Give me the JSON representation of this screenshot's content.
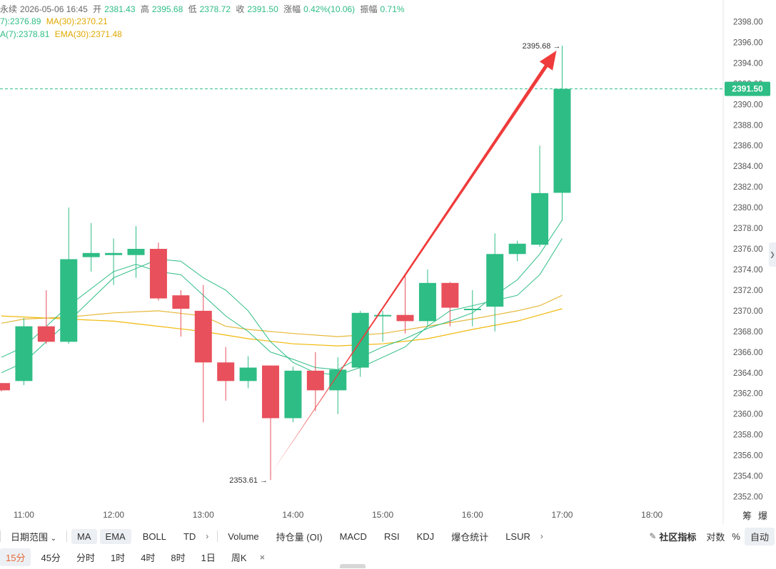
{
  "header": {
    "title_fragment": "永续",
    "datetime": "2026-05-06 16:45",
    "open_label": "开",
    "open": "2381.43",
    "high_label": "高",
    "high": "2395.68",
    "low_label": "低",
    "low": "2378.72",
    "close_label": "收",
    "close": "2391.50",
    "change_label": "涨幅",
    "change": "0.42%(10.06)",
    "amp_label": "振幅",
    "amp": "0.71%",
    "ma7": "7):2376.89",
    "ma30": "MA(30):2370.21",
    "ema7": "A(7):2378.81",
    "ema30": "EMA(30):2371.48"
  },
  "chart_data": {
    "type": "candlestick",
    "interval": "15分",
    "y_ticks": [
      2352,
      2354,
      2356,
      2358,
      2360,
      2362,
      2364,
      2366,
      2368,
      2370,
      2372,
      2374,
      2376,
      2378,
      2380,
      2382,
      2384,
      2386,
      2388,
      2390,
      2392,
      2394,
      2396,
      2398
    ],
    "y_range": [
      2351,
      2399
    ],
    "x_ticks": [
      "11:00",
      "12:00",
      "13:00",
      "14:00",
      "15:00",
      "16:00",
      "17:00",
      "18:00"
    ],
    "x_range_hours": [
      10.75,
      18.5
    ],
    "candles": [
      {
        "t": 10.75,
        "o": 2363.0,
        "h": 2363.0,
        "l": 2362.2,
        "c": 2362.3
      },
      {
        "t": 11.0,
        "o": 2363.2,
        "h": 2369.3,
        "l": 2362.8,
        "c": 2368.5
      },
      {
        "t": 11.25,
        "o": 2368.5,
        "h": 2372.0,
        "l": 2366.8,
        "c": 2367.0
      },
      {
        "t": 11.5,
        "o": 2367.0,
        "h": 2380.0,
        "l": 2366.8,
        "c": 2375.0
      },
      {
        "t": 11.75,
        "o": 2375.2,
        "h": 2378.5,
        "l": 2373.8,
        "c": 2375.6
      },
      {
        "t": 12.0,
        "o": 2375.4,
        "h": 2377.0,
        "l": 2372.5,
        "c": 2375.6
      },
      {
        "t": 12.25,
        "o": 2375.4,
        "h": 2378.2,
        "l": 2373.2,
        "c": 2376.0
      },
      {
        "t": 12.5,
        "o": 2376.0,
        "h": 2376.6,
        "l": 2371.0,
        "c": 2371.2
      },
      {
        "t": 12.75,
        "o": 2371.5,
        "h": 2372.0,
        "l": 2367.5,
        "c": 2370.2
      },
      {
        "t": 13.0,
        "o": 2370.0,
        "h": 2372.5,
        "l": 2359.2,
        "c": 2365.0
      },
      {
        "t": 13.25,
        "o": 2365.0,
        "h": 2366.5,
        "l": 2361.3,
        "c": 2363.2
      },
      {
        "t": 13.5,
        "o": 2363.2,
        "h": 2365.6,
        "l": 2362.5,
        "c": 2364.5
      },
      {
        "t": 13.75,
        "o": 2364.7,
        "h": 2364.7,
        "l": 2353.61,
        "c": 2359.6
      },
      {
        "t": 14.0,
        "o": 2359.6,
        "h": 2364.6,
        "l": 2359.2,
        "c": 2364.2
      },
      {
        "t": 14.25,
        "o": 2364.2,
        "h": 2366.0,
        "l": 2360.3,
        "c": 2362.3
      },
      {
        "t": 14.5,
        "o": 2362.3,
        "h": 2365.5,
        "l": 2360.0,
        "c": 2364.3
      },
      {
        "t": 14.75,
        "o": 2364.5,
        "h": 2370.0,
        "l": 2363.6,
        "c": 2369.8
      },
      {
        "t": 15.0,
        "o": 2369.6,
        "h": 2370.0,
        "l": 2367.0,
        "c": 2369.6
      },
      {
        "t": 15.25,
        "o": 2369.6,
        "h": 2373.5,
        "l": 2367.8,
        "c": 2369.0
      },
      {
        "t": 15.5,
        "o": 2369.0,
        "h": 2374.0,
        "l": 2368.5,
        "c": 2372.7
      },
      {
        "t": 15.75,
        "o": 2372.7,
        "h": 2372.8,
        "l": 2368.5,
        "c": 2370.3
      },
      {
        "t": 16.0,
        "o": 2370.2,
        "h": 2372.0,
        "l": 2368.5,
        "c": 2370.2
      },
      {
        "t": 16.25,
        "o": 2370.4,
        "h": 2377.5,
        "l": 2368.0,
        "c": 2375.5
      },
      {
        "t": 16.5,
        "o": 2375.5,
        "h": 2376.8,
        "l": 2374.8,
        "c": 2376.5
      },
      {
        "t": 16.75,
        "o": 2376.4,
        "h": 2386.0,
        "l": 2376.2,
        "c": 2381.4
      },
      {
        "t": 17.0,
        "o": 2381.43,
        "h": 2395.68,
        "l": 2378.72,
        "c": 2391.5
      }
    ],
    "ma7": [
      [
        10.75,
        2364.0
      ],
      [
        11.0,
        2365.0
      ],
      [
        11.5,
        2369.0
      ],
      [
        12.0,
        2373.2
      ],
      [
        12.5,
        2375.0
      ],
      [
        12.75,
        2374.8
      ],
      [
        13.0,
        2373.2
      ],
      [
        13.25,
        2372.0
      ],
      [
        13.5,
        2370.0
      ],
      [
        13.75,
        2367.0
      ],
      [
        14.0,
        2365.0
      ],
      [
        14.25,
        2364.0
      ],
      [
        14.5,
        2363.8
      ],
      [
        14.75,
        2364.5
      ],
      [
        15.0,
        2365.5
      ],
      [
        15.25,
        2366.5
      ],
      [
        15.5,
        2368.5
      ],
      [
        15.75,
        2370.0
      ],
      [
        16.0,
        2370.5
      ],
      [
        16.25,
        2371.0
      ],
      [
        16.5,
        2371.5
      ],
      [
        16.75,
        2373.5
      ],
      [
        17.0,
        2377.0
      ]
    ],
    "ema7": [
      [
        10.75,
        2365.5
      ],
      [
        11.0,
        2366.5
      ],
      [
        11.5,
        2370.5
      ],
      [
        12.0,
        2373.8
      ],
      [
        12.25,
        2374.5
      ],
      [
        12.5,
        2373.8
      ],
      [
        12.75,
        2373.5
      ],
      [
        13.0,
        2371.5
      ],
      [
        13.25,
        2369.5
      ],
      [
        13.5,
        2368.0
      ],
      [
        13.75,
        2366.0
      ],
      [
        14.0,
        2365.3
      ],
      [
        14.25,
        2364.5
      ],
      [
        14.5,
        2364.3
      ],
      [
        14.75,
        2365.5
      ],
      [
        15.0,
        2366.5
      ],
      [
        15.25,
        2367.3
      ],
      [
        15.5,
        2368.3
      ],
      [
        15.75,
        2369.0
      ],
      [
        16.0,
        2369.8
      ],
      [
        16.25,
        2371.5
      ],
      [
        16.5,
        2373.0
      ],
      [
        16.75,
        2375.5
      ],
      [
        17.0,
        2378.8
      ]
    ],
    "ma30": [
      [
        10.75,
        2369.5
      ],
      [
        11.5,
        2369.2
      ],
      [
        12.0,
        2369.0
      ],
      [
        12.5,
        2368.5
      ],
      [
        13.0,
        2368.0
      ],
      [
        13.5,
        2367.3
      ],
      [
        14.0,
        2366.8
      ],
      [
        14.5,
        2366.6
      ],
      [
        15.0,
        2366.8
      ],
      [
        15.5,
        2367.3
      ],
      [
        16.0,
        2368.2
      ],
      [
        16.5,
        2369.0
      ],
      [
        17.0,
        2370.2
      ]
    ],
    "ema30": [
      [
        10.75,
        2368.8
      ],
      [
        11.0,
        2369.2
      ],
      [
        11.5,
        2369.4
      ],
      [
        12.0,
        2369.8
      ],
      [
        12.5,
        2370.0
      ],
      [
        13.0,
        2369.5
      ],
      [
        13.25,
        2368.5
      ],
      [
        13.5,
        2368.2
      ],
      [
        13.75,
        2368.0
      ],
      [
        14.0,
        2367.8
      ],
      [
        14.5,
        2367.5
      ],
      [
        15.0,
        2367.8
      ],
      [
        15.5,
        2368.5
      ],
      [
        16.0,
        2369.2
      ],
      [
        16.25,
        2369.6
      ],
      [
        16.5,
        2370.0
      ],
      [
        16.75,
        2370.5
      ],
      [
        17.0,
        2371.5
      ]
    ],
    "last_price": "2391.50",
    "low_annotation": "2353.61 →",
    "high_annotation": "2395.68 →",
    "arrow": {
      "from": [
        13.75,
        2353.61
      ],
      "to": [
        17.0,
        2395.2
      ]
    },
    "colors": {
      "up": "#2ebd85",
      "down": "#e8505b",
      "ma7": "#2ebd85",
      "ema7": "#2ebd85",
      "ma30": "#f0b90b",
      "ema30": "#e5b83a",
      "arrow": "#ef3b3b",
      "price_line": "#2ebd85"
    },
    "right_labels": {
      "chip": "筹",
      "liq": "爆"
    }
  },
  "toolbar": {
    "date_range": "日期范围",
    "ma": "MA",
    "ema": "EMA",
    "boll": "BOLL",
    "td": "TD",
    "volume": "Volume",
    "oi": "持仓量 (OI)",
    "macd": "MACD",
    "rsi": "RSI",
    "kdj": "KDJ",
    "liq_stats": "爆仓统计",
    "lsur": "LSUR",
    "community": "社区指标",
    "log": "对数",
    "pct": "%",
    "auto": "自动"
  },
  "intervals": {
    "items": [
      "15分",
      "45分",
      "分时",
      "1时",
      "4时",
      "8时",
      "1日",
      "周K"
    ],
    "selected": "15分",
    "close": "×"
  }
}
